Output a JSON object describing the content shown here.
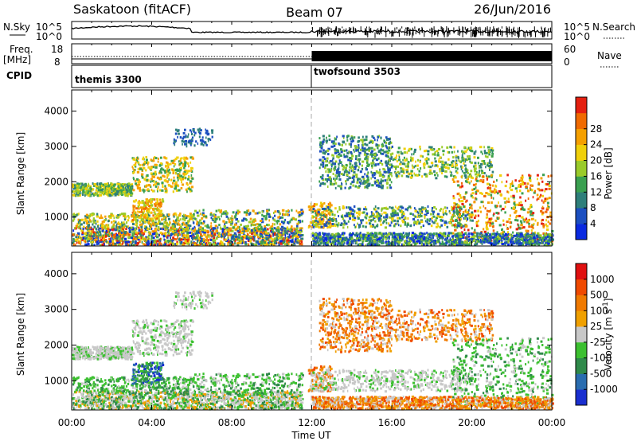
{
  "header": {
    "station": "Saskatoon (fitACF)",
    "beam": "Beam 07",
    "date": "26/Jun/2016"
  },
  "strips": {
    "nsky_label": "N.Sky",
    "nsky_ticks": [
      "10^5",
      "10^0"
    ],
    "nsearch_label": "N.Search",
    "nsearch_ticks": [
      "10^5",
      "10^0"
    ],
    "freq_label": "Freq.",
    "freq_unit": "[MHz]",
    "freq_ticks": [
      18,
      8
    ],
    "nave_label": "Nave",
    "nave_ticks": [
      60,
      0
    ],
    "cpid_label": "CPID",
    "cpid_modes": [
      {
        "name": "themis 3300",
        "start_hour": 0,
        "end_hour": 12
      },
      {
        "name": "twofsound 3503",
        "start_hour": 12,
        "end_hour": 24
      }
    ]
  },
  "chart_data": [
    {
      "type": "heatmap",
      "name": "power",
      "ylabel": "Slant Range [km]",
      "yticks": [
        1000,
        2000,
        3000,
        4000
      ],
      "ylim": [
        180,
        4600
      ],
      "xlim": [
        0,
        24
      ],
      "xticks": [
        "00:00",
        "04:00",
        "08:00",
        "12:00",
        "16:00",
        "20:00",
        "00:00"
      ],
      "colorbar": {
        "label": "Power [dB]",
        "ticks": [
          4,
          8,
          12,
          16,
          20,
          24,
          28
        ],
        "colors": [
          "#0a2ae0",
          "#1c4fc0",
          "#2e7f7a",
          "#3aa050",
          "#9acb2a",
          "#f0d00a",
          "#f5a000",
          "#f06a00",
          "#e52010"
        ]
      }
    },
    {
      "type": "heatmap",
      "name": "velocity",
      "ylabel": "Slant Range [km]",
      "yticks": [
        1000,
        2000,
        3000,
        4000
      ],
      "ylim": [
        180,
        4600
      ],
      "xlim": [
        0,
        24
      ],
      "xlabel": "Time UT",
      "xticks": [
        "00:00",
        "04:00",
        "08:00",
        "12:00",
        "16:00",
        "20:00",
        "00:00"
      ],
      "colorbar": {
        "label": "Velocity [m s^-1]",
        "ticks": [
          "1000",
          "500",
          "100",
          "25",
          "-25",
          "-100",
          "-500",
          "-1000"
        ],
        "colors": [
          "#1a2fd0",
          "#2a6db0",
          "#2f8a4a",
          "#3cc030",
          "#c8c8c8",
          "#f0a000",
          "#f07a00",
          "#f04a00",
          "#e01010"
        ]
      }
    }
  ],
  "colors": {
    "gray_scatter": "#c8c8c8"
  }
}
